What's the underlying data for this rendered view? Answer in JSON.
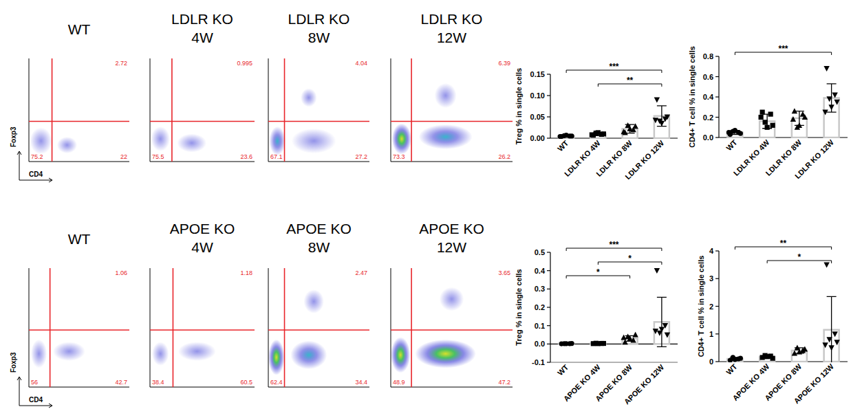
{
  "chart_data": [
    {
      "type": "flow",
      "title": "WT",
      "x_label": "CD4",
      "y_label": "Foxp3",
      "xlim": [
        0,
        100
      ],
      "ylim": [
        0,
        100
      ],
      "gate": {
        "x": 23,
        "y": 39
      },
      "quadrants": {
        "upper_right": 2.72,
        "lower_left": 75.2,
        "lower_right": 22
      },
      "clusters": [
        {
          "x": 12,
          "y": 20,
          "rx": 11,
          "ry": 13,
          "density": 1
        },
        {
          "x": 38,
          "y": 16,
          "rx": 10,
          "ry": 8,
          "density": 1
        }
      ]
    },
    {
      "type": "flow",
      "title": "LDLR KO\n4W",
      "xlim": [
        0,
        100
      ],
      "ylim": [
        0,
        100
      ],
      "gate": {
        "x": 21,
        "y": 39
      },
      "quadrants": {
        "upper_right": 0.995,
        "lower_left": 75.5,
        "lower_right": 23.6
      },
      "clusters": [
        {
          "x": 10,
          "y": 22,
          "rx": 9,
          "ry": 12,
          "density": 1
        },
        {
          "x": 40,
          "y": 18,
          "rx": 14,
          "ry": 9,
          "density": 1
        }
      ]
    },
    {
      "type": "flow",
      "title": "LDLR KO\n8W",
      "xlim": [
        0,
        100
      ],
      "ylim": [
        0,
        100
      ],
      "gate": {
        "x": 16,
        "y": 39
      },
      "quadrants": {
        "upper_right": 4.04,
        "lower_left": 67.1,
        "lower_right": 27.2
      },
      "clusters": [
        {
          "x": 9,
          "y": 20,
          "rx": 8,
          "ry": 14,
          "density": 2
        },
        {
          "x": 45,
          "y": 20,
          "rx": 22,
          "ry": 12,
          "density": 1
        },
        {
          "x": 40,
          "y": 62,
          "rx": 8,
          "ry": 9,
          "density": 1
        }
      ]
    },
    {
      "type": "flow",
      "title": "LDLR KO\n12W",
      "xlim": [
        0,
        100
      ],
      "ylim": [
        0,
        100
      ],
      "gate": {
        "x": 17,
        "y": 39
      },
      "quadrants": {
        "upper_right": 6.39,
        "lower_left": 73.3,
        "lower_right": 26.2
      },
      "clusters": [
        {
          "x": 9,
          "y": 22,
          "rx": 8,
          "ry": 15,
          "density": 3
        },
        {
          "x": 45,
          "y": 24,
          "rx": 22,
          "ry": 12,
          "density": 2
        },
        {
          "x": 45,
          "y": 64,
          "rx": 9,
          "ry": 12,
          "density": 1
        }
      ]
    },
    {
      "type": "bar",
      "y_label": "Treg % in single cells",
      "categories": [
        "WT",
        "LDLR KO 4W",
        "LDLR KO 8W",
        "LDLR KO 12W"
      ],
      "values": [
        0.005,
        0.01,
        0.022,
        0.052
      ],
      "errors": [
        0.002,
        0.004,
        0.01,
        0.024
      ],
      "points": [
        {
          "marker": "circle",
          "values": [
            0.004,
            0.005,
            0.006,
            0.005,
            0.007,
            0.004
          ]
        },
        {
          "marker": "square",
          "values": [
            0.007,
            0.009,
            0.012,
            0.01,
            0.013,
            0.008
          ]
        },
        {
          "marker": "triangle-up",
          "values": [
            0.013,
            0.02,
            0.03,
            0.028,
            0.022,
            0.015
          ]
        },
        {
          "marker": "triangle-down",
          "values": [
            0.09,
            0.045,
            0.04,
            0.05,
            0.035,
            0.042
          ]
        }
      ],
      "ylim": [
        0,
        0.15
      ],
      "yticks": [
        {
          "value": 0,
          "label": "0.00"
        },
        {
          "value": 0.05,
          "label": "0.05"
        },
        {
          "value": 0.1,
          "label": "0.10"
        },
        {
          "value": 0.15,
          "label": "0.15"
        }
      ],
      "significance": [
        {
          "from": 0,
          "to": 3,
          "label": "***"
        },
        {
          "from": 1,
          "to": 3,
          "label": "**"
        }
      ]
    },
    {
      "type": "bar",
      "y_label": "CD4+ T cell % in single cells",
      "categories": [
        "WT",
        "LDLR KO 4W",
        "LDLR KO 8W",
        "LDLR KO 12W"
      ],
      "values": [
        0.05,
        0.16,
        0.19,
        0.39
      ],
      "errors": [
        0.02,
        0.07,
        0.07,
        0.14
      ],
      "points": [
        {
          "marker": "circle",
          "values": [
            0.03,
            0.05,
            0.06,
            0.04,
            0.07,
            0.05
          ]
        },
        {
          "marker": "square",
          "values": [
            0.25,
            0.23,
            0.15,
            0.12,
            0.1,
            0.2
          ]
        },
        {
          "marker": "triangle-up",
          "values": [
            0.26,
            0.23,
            0.1,
            0.2,
            0.12,
            0.18
          ]
        },
        {
          "marker": "triangle-down",
          "values": [
            0.68,
            0.42,
            0.38,
            0.35,
            0.3,
            0.25
          ]
        }
      ],
      "ylim": [
        0,
        0.8
      ],
      "yticks": [
        {
          "value": 0,
          "label": "0.0"
        },
        0.2,
        0.4,
        0.6,
        0.8
      ],
      "significance": [
        {
          "from": 0,
          "to": 3,
          "label": "***"
        }
      ]
    },
    {
      "type": "flow",
      "title": "WT",
      "x_label": "CD4",
      "y_label": "Foxp3",
      "xlim": [
        0,
        100
      ],
      "ylim": [
        0,
        100
      ],
      "gate": {
        "x": 21,
        "y": 48
      },
      "quadrants": {
        "upper_right": 1.06,
        "lower_left": 56,
        "lower_right": 42.7
      },
      "clusters": [
        {
          "x": 10,
          "y": 28,
          "rx": 8,
          "ry": 12,
          "density": 1
        },
        {
          "x": 40,
          "y": 30,
          "rx": 16,
          "ry": 8,
          "density": 1
        }
      ]
    },
    {
      "type": "flow",
      "title": "APOE KO\n4W",
      "xlim": [
        0,
        100
      ],
      "ylim": [
        0,
        100
      ],
      "gate": {
        "x": 22,
        "y": 48
      },
      "quadrants": {
        "upper_right": 1.18,
        "lower_left": 38.4,
        "lower_right": 60.5
      },
      "clusters": [
        {
          "x": 10,
          "y": 28,
          "rx": 8,
          "ry": 10,
          "density": 1
        },
        {
          "x": 45,
          "y": 30,
          "rx": 18,
          "ry": 8,
          "density": 1
        }
      ]
    },
    {
      "type": "flow",
      "title": "APOE KO\n8W",
      "xlim": [
        0,
        100
      ],
      "ylim": [
        0,
        100
      ],
      "gate": {
        "x": 16,
        "y": 48
      },
      "quadrants": {
        "upper_right": 2.47,
        "lower_left": 62.4,
        "lower_right": 34.4
      },
      "clusters": [
        {
          "x": 8,
          "y": 25,
          "rx": 8,
          "ry": 15,
          "density": 3
        },
        {
          "x": 40,
          "y": 27,
          "rx": 18,
          "ry": 12,
          "density": 2
        },
        {
          "x": 45,
          "y": 72,
          "rx": 10,
          "ry": 10,
          "density": 1
        }
      ]
    },
    {
      "type": "flow",
      "title": "APOE KO\n12W",
      "xlim": [
        0,
        100
      ],
      "ylim": [
        0,
        100
      ],
      "gate": {
        "x": 17,
        "y": 48
      },
      "quadrants": {
        "upper_right": 3.65,
        "lower_left": 48.9,
        "lower_right": 47.2
      },
      "clusters": [
        {
          "x": 8,
          "y": 27,
          "rx": 8,
          "ry": 15,
          "density": 3
        },
        {
          "x": 45,
          "y": 28,
          "rx": 25,
          "ry": 12,
          "density": 3
        },
        {
          "x": 50,
          "y": 74,
          "rx": 10,
          "ry": 10,
          "density": 1
        }
      ]
    },
    {
      "type": "bar",
      "y_label": "Treg % in single cells",
      "categories": [
        "WT",
        "APOE KO 4W",
        "APOE KO 8W",
        "APOE KO 12W"
      ],
      "values": [
        0.002,
        0.003,
        0.03,
        0.12
      ],
      "errors": [
        0.001,
        0.001,
        0.015,
        0.135
      ],
      "points": [
        {
          "marker": "circle",
          "values": [
            0.001,
            0.002,
            0.002,
            0.003,
            0.002
          ]
        },
        {
          "marker": "square",
          "values": [
            0.002,
            0.003,
            0.004,
            0.003,
            0.002
          ]
        },
        {
          "marker": "triangle-up",
          "values": [
            0.01,
            0.02,
            0.04,
            0.05,
            0.03,
            0.035
          ]
        },
        {
          "marker": "triangle-down",
          "values": [
            0.4,
            0.1,
            0.06,
            0.05,
            0.08,
            0.07
          ]
        }
      ],
      "ylim": [
        -0.1,
        0.5
      ],
      "yticks": [
        -0.1,
        {
          "value": 0,
          "label": "0.0"
        },
        0.1,
        0.2,
        0.3,
        0.4,
        0.5
      ],
      "significance": [
        {
          "from": 0,
          "to": 3,
          "label": "***"
        },
        {
          "from": 1,
          "to": 3,
          "label": "*"
        },
        {
          "from": 0,
          "to": 2,
          "label": "*"
        }
      ]
    },
    {
      "type": "bar",
      "y_label": "CD4+ T cell % in single cells",
      "categories": [
        "WT",
        "APOE KO 4W",
        "APOE KO 8W",
        "APOE KO 12W"
      ],
      "values": [
        0.1,
        0.17,
        0.4,
        1.15
      ],
      "errors": [
        0.05,
        0.05,
        0.1,
        1.2
      ],
      "points": [
        {
          "marker": "circle",
          "values": [
            0.05,
            0.1,
            0.15,
            0.12,
            0.08
          ]
        },
        {
          "marker": "square",
          "values": [
            0.15,
            0.2,
            0.22,
            0.12,
            0.18
          ]
        },
        {
          "marker": "triangle-up",
          "values": [
            0.3,
            0.4,
            0.5,
            0.45,
            0.35
          ]
        },
        {
          "marker": "triangle-down",
          "values": [
            3.5,
            1.0,
            0.8,
            0.7,
            0.5,
            0.6
          ]
        }
      ],
      "ylim": [
        0,
        4
      ],
      "yticks": [
        0,
        1,
        2,
        3,
        4
      ],
      "significance": [
        {
          "from": 0,
          "to": 3,
          "label": "**"
        },
        {
          "from": 1,
          "to": 3,
          "label": "*"
        }
      ]
    }
  ]
}
